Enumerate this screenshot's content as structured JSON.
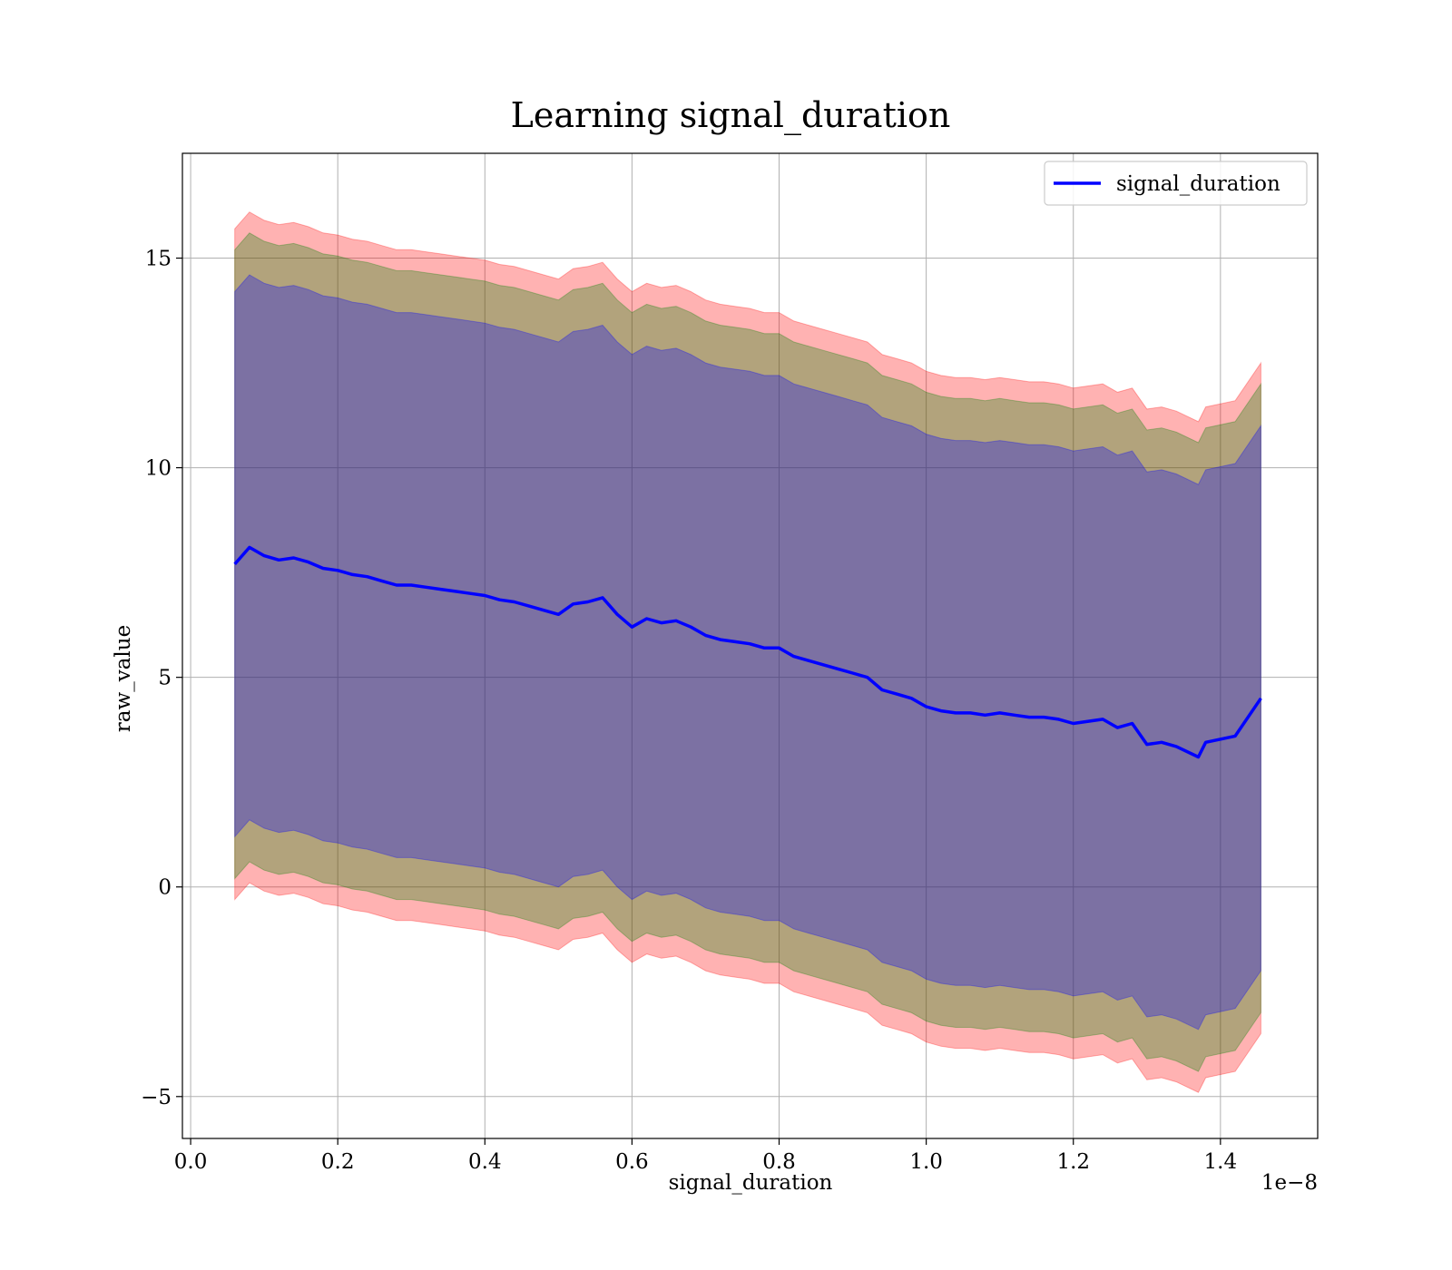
{
  "chart_data": {
    "type": "line",
    "title": "Learning signal_duration",
    "xlabel": "signal_duration",
    "ylabel": "raw_value",
    "x_offset_label": "1e−8",
    "xlim": [
      -0.0112,
      1.5322
    ],
    "ylim": [
      -6.0,
      17.5
    ],
    "x_ticks": [
      0.0,
      0.2,
      0.4,
      0.6,
      0.8,
      1.0,
      1.2,
      1.4
    ],
    "x_tick_labels": [
      "0.0",
      "0.2",
      "0.4",
      "0.6",
      "0.8",
      "1.0",
      "1.2",
      "1.4"
    ],
    "y_ticks": [
      -5,
      0,
      5,
      10,
      15
    ],
    "y_tick_labels": [
      "−5",
      "0",
      "5",
      "10",
      "15"
    ],
    "grid": true,
    "legend": {
      "position": "top-right",
      "entries": [
        "signal_duration"
      ]
    },
    "x": [
      0.06,
      0.08,
      0.1,
      0.12,
      0.14,
      0.16,
      0.18,
      0.2,
      0.22,
      0.24,
      0.26,
      0.28,
      0.3,
      0.32,
      0.34,
      0.36,
      0.38,
      0.4,
      0.42,
      0.44,
      0.46,
      0.48,
      0.5,
      0.52,
      0.54,
      0.56,
      0.58,
      0.6,
      0.62,
      0.64,
      0.66,
      0.68,
      0.7,
      0.72,
      0.74,
      0.76,
      0.78,
      0.8,
      0.82,
      0.84,
      0.86,
      0.88,
      0.9,
      0.92,
      0.94,
      0.96,
      0.98,
      1.0,
      1.02,
      1.04,
      1.06,
      1.08,
      1.1,
      1.12,
      1.14,
      1.16,
      1.18,
      1.2,
      1.24,
      1.26,
      1.28,
      1.3,
      1.32,
      1.34,
      1.37,
      1.38,
      1.42,
      1.455
    ],
    "series": [
      {
        "name": "signal_duration",
        "color": "#0000ff",
        "values": [
          7.7,
          8.1,
          7.9,
          7.8,
          7.85,
          7.75,
          7.6,
          7.55,
          7.45,
          7.4,
          7.3,
          7.2,
          7.2,
          7.15,
          7.1,
          7.05,
          7.0,
          6.95,
          6.85,
          6.8,
          6.7,
          6.6,
          6.5,
          6.75,
          6.8,
          6.9,
          6.5,
          6.2,
          6.4,
          6.3,
          6.35,
          6.2,
          6.0,
          5.9,
          5.85,
          5.8,
          5.7,
          5.7,
          5.5,
          5.4,
          5.3,
          5.2,
          5.1,
          5.0,
          4.7,
          4.6,
          4.5,
          4.3,
          4.2,
          4.15,
          4.15,
          4.1,
          4.15,
          4.1,
          4.05,
          4.05,
          4.0,
          3.9,
          4.0,
          3.8,
          3.9,
          3.4,
          3.45,
          3.35,
          3.1,
          3.45,
          3.6,
          4.5
        ]
      }
    ],
    "bands": [
      {
        "color": "#ff0000",
        "alpha": 0.3,
        "half_width": 8.0
      },
      {
        "color": "#008000",
        "alpha": 0.3,
        "half_width": 7.5
      },
      {
        "color": "#0000ff",
        "alpha": 0.3,
        "half_width": 6.5
      }
    ]
  }
}
